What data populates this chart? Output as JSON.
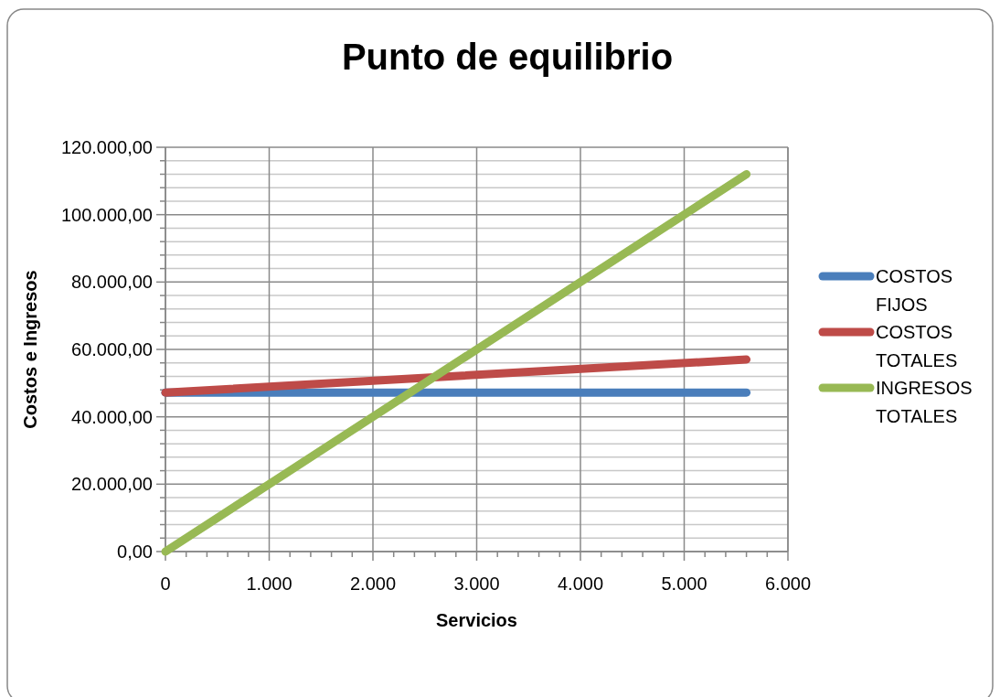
{
  "chart_data": {
    "type": "line",
    "title": "Punto de equilibrio",
    "xlabel": "Servicios",
    "ylabel": "Costos e Ingresos",
    "x": [
      0,
      5600
    ],
    "series": [
      {
        "name": "COSTOS FIJOS",
        "color": "#4a7ebb",
        "values": [
          47200,
          47200
        ]
      },
      {
        "name": "COSTOS TOTALES",
        "color": "#be4b48",
        "values": [
          47200,
          57000
        ]
      },
      {
        "name": "INGRESOS TOTALES",
        "color": "#98b954",
        "values": [
          0,
          112000
        ]
      }
    ],
    "xlim": [
      0,
      6000
    ],
    "xticks": [
      {
        "value": 0,
        "label": "0"
      },
      {
        "value": 200,
        "label": null
      },
      {
        "value": 400,
        "label": null
      },
      {
        "value": 600,
        "label": null
      },
      {
        "value": 800,
        "label": null
      },
      {
        "value": 1000,
        "label": "1.000"
      },
      {
        "value": 1200,
        "label": null
      },
      {
        "value": 1400,
        "label": null
      },
      {
        "value": 1600,
        "label": null
      },
      {
        "value": 1800,
        "label": null
      },
      {
        "value": 2000,
        "label": "2.000"
      },
      {
        "value": 2200,
        "label": null
      },
      {
        "value": 2400,
        "label": null
      },
      {
        "value": 2600,
        "label": null
      },
      {
        "value": 2800,
        "label": null
      },
      {
        "value": 3000,
        "label": "3.000"
      },
      {
        "value": 3200,
        "label": null
      },
      {
        "value": 3400,
        "label": null
      },
      {
        "value": 3600,
        "label": null
      },
      {
        "value": 3800,
        "label": null
      },
      {
        "value": 4000,
        "label": "4.000"
      },
      {
        "value": 4200,
        "label": null
      },
      {
        "value": 4400,
        "label": null
      },
      {
        "value": 4600,
        "label": null
      },
      {
        "value": 4800,
        "label": null
      },
      {
        "value": 5000,
        "label": "5.000"
      },
      {
        "value": 5200,
        "label": null
      },
      {
        "value": 5400,
        "label": null
      },
      {
        "value": 5600,
        "label": null
      },
      {
        "value": 5800,
        "label": null
      },
      {
        "value": 6000,
        "label": "6.000"
      }
    ],
    "ylim": [
      0,
      120000
    ],
    "yticks": [
      {
        "value": 0,
        "label": "0,00"
      },
      {
        "value": 4000,
        "label": null
      },
      {
        "value": 8000,
        "label": null
      },
      {
        "value": 12000,
        "label": null
      },
      {
        "value": 16000,
        "label": null
      },
      {
        "value": 20000,
        "label": "20.000,00"
      },
      {
        "value": 24000,
        "label": null
      },
      {
        "value": 28000,
        "label": null
      },
      {
        "value": 32000,
        "label": null
      },
      {
        "value": 36000,
        "label": null
      },
      {
        "value": 40000,
        "label": "40.000,00"
      },
      {
        "value": 44000,
        "label": null
      },
      {
        "value": 48000,
        "label": null
      },
      {
        "value": 52000,
        "label": null
      },
      {
        "value": 56000,
        "label": null
      },
      {
        "value": 60000,
        "label": "60.000,00"
      },
      {
        "value": 64000,
        "label": null
      },
      {
        "value": 68000,
        "label": null
      },
      {
        "value": 72000,
        "label": null
      },
      {
        "value": 76000,
        "label": null
      },
      {
        "value": 80000,
        "label": "80.000,00"
      },
      {
        "value": 84000,
        "label": null
      },
      {
        "value": 88000,
        "label": null
      },
      {
        "value": 92000,
        "label": null
      },
      {
        "value": 96000,
        "label": null
      },
      {
        "value": 100000,
        "label": "100.000,00"
      },
      {
        "value": 104000,
        "label": null
      },
      {
        "value": 108000,
        "label": null
      },
      {
        "value": 112000,
        "label": null
      },
      {
        "value": 116000,
        "label": null
      },
      {
        "value": 120000,
        "label": "120.000,00"
      }
    ],
    "grid": true,
    "legend": "right",
    "marker": "none",
    "line_style": "solid"
  }
}
